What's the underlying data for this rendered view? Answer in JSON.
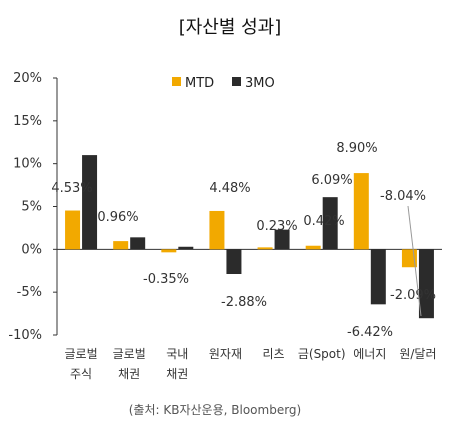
{
  "chart_data": {
    "type": "bar",
    "title": "[자산별 성과]",
    "source": "(출처: KB자산운용, Bloomberg)",
    "categories": [
      [
        "글로벌",
        "주식"
      ],
      [
        "글로벌",
        "채권"
      ],
      [
        "국내",
        "채권"
      ],
      [
        "원자재"
      ],
      [
        "리츠"
      ],
      [
        "금(Spot)"
      ],
      [
        "에너지"
      ],
      [
        "원/달러"
      ]
    ],
    "series": [
      {
        "name": "MTD",
        "color": "#F2A900",
        "values": [
          4.53,
          0.96,
          -0.35,
          4.48,
          0.23,
          0.42,
          8.9,
          -2.09
        ],
        "labels": [
          "4.53%",
          "0.96%",
          "-0.35%",
          "4.48%",
          "0.23%",
          "0.42%",
          "8.90%",
          "-2.09%"
        ]
      },
      {
        "name": "3MO",
        "color": "#2B2B2B",
        "values": [
          11.0,
          1.4,
          0.3,
          -2.88,
          2.3,
          6.09,
          -6.42,
          -8.04
        ],
        "labels": [
          "",
          "",
          "",
          "-2.88%",
          "",
          "6.09%",
          "-6.42%",
          "-8.04%"
        ]
      }
    ],
    "y_ticks": [
      "20%",
      "15%",
      "10%",
      "5%",
      "0%",
      "-5%",
      "-10%"
    ],
    "ylim": [
      -10,
      20
    ],
    "grid": false,
    "legend_position": "top-center"
  }
}
